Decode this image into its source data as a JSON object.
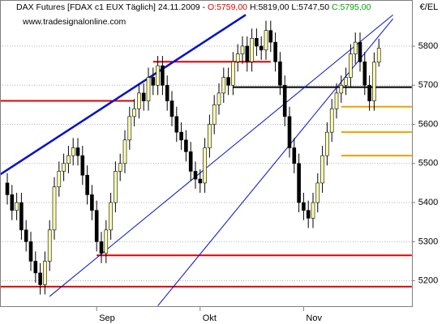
{
  "chart_data": {
    "type": "candlestick",
    "title": "DAX Futures [FDAX c1 EUX  Täglich] 24.11.2009 -",
    "quote_labels": {
      "open": "O:5759,00",
      "high": "H:5819,00",
      "low": "L:5747,50",
      "close": "C:5795,00"
    },
    "watermark": "www.tradesignalonline.com",
    "unit": "€/EL",
    "categories": [
      null,
      null,
      null,
      null,
      null,
      null,
      null,
      null,
      null,
      null,
      null,
      null,
      null,
      null,
      null,
      null,
      null,
      null,
      null,
      "Sep",
      null,
      null,
      null,
      null,
      null,
      null,
      null,
      null,
      null,
      null,
      null,
      null,
      null,
      null,
      null,
      null,
      null,
      null,
      null,
      null,
      null,
      "Okt",
      null,
      null,
      null,
      null,
      null,
      null,
      null,
      null,
      null,
      null,
      null,
      null,
      null,
      null,
      null,
      null,
      null,
      null,
      null,
      null,
      null,
      "Nov",
      null,
      null,
      null,
      null,
      null,
      null,
      null,
      null,
      null,
      null,
      null,
      null,
      null,
      null,
      null,
      null
    ],
    "open": [
      5450,
      5420,
      5380,
      5400,
      5330,
      5300,
      5250,
      5220,
      5190,
      5250,
      5330,
      5440,
      5480,
      5500,
      5520,
      5540,
      5520,
      5470,
      5420,
      5380,
      5300,
      5270,
      5330,
      5400,
      5480,
      5500,
      5560,
      5620,
      5640,
      5680,
      5660,
      5720,
      5700,
      5750,
      5700,
      5660,
      5620,
      5580,
      5560,
      5530,
      5480,
      5460,
      5450,
      5540,
      5600,
      5650,
      5680,
      5720,
      5700,
      5760,
      5780,
      5800,
      5760,
      5820,
      5800,
      5790,
      5840,
      5810,
      5760,
      5700,
      5620,
      5540,
      5500,
      5400,
      5380,
      5360,
      5400,
      5450,
      5520,
      5580,
      5640,
      5680,
      5700,
      5720,
      5780,
      5810,
      5760,
      5700,
      5660,
      5759
    ],
    "high": [
      5475,
      5445,
      5425,
      5425,
      5355,
      5325,
      5275,
      5245,
      5275,
      5355,
      5465,
      5505,
      5525,
      5545,
      5565,
      5565,
      5545,
      5495,
      5445,
      5405,
      5325,
      5355,
      5425,
      5505,
      5525,
      5585,
      5645,
      5665,
      5705,
      5705,
      5745,
      5745,
      5775,
      5775,
      5725,
      5685,
      5645,
      5605,
      5585,
      5555,
      5505,
      5485,
      5565,
      5625,
      5675,
      5705,
      5745,
      5745,
      5785,
      5805,
      5825,
      5825,
      5845,
      5845,
      5825,
      5865,
      5865,
      5835,
      5785,
      5725,
      5645,
      5565,
      5525,
      5425,
      5405,
      5425,
      5475,
      5545,
      5605,
      5665,
      5705,
      5725,
      5745,
      5805,
      5835,
      5835,
      5785,
      5725,
      5784,
      5819
    ],
    "low": [
      5395,
      5355,
      5355,
      5305,
      5275,
      5225,
      5195,
      5165,
      5165,
      5225,
      5305,
      5415,
      5455,
      5475,
      5495,
      5495,
      5445,
      5395,
      5355,
      5275,
      5245,
      5245,
      5305,
      5375,
      5455,
      5475,
      5535,
      5595,
      5615,
      5635,
      5635,
      5675,
      5675,
      5675,
      5635,
      5595,
      5555,
      5535,
      5505,
      5455,
      5435,
      5425,
      5425,
      5515,
      5575,
      5625,
      5655,
      5675,
      5675,
      5735,
      5755,
      5735,
      5735,
      5775,
      5765,
      5765,
      5785,
      5735,
      5675,
      5595,
      5515,
      5475,
      5375,
      5355,
      5335,
      5335,
      5375,
      5425,
      5495,
      5555,
      5615,
      5655,
      5675,
      5695,
      5755,
      5735,
      5675,
      5635,
      5635,
      5747.5
    ],
    "close": [
      5420,
      5380,
      5400,
      5330,
      5300,
      5250,
      5220,
      5190,
      5250,
      5330,
      5440,
      5480,
      5500,
      5520,
      5540,
      5520,
      5470,
      5420,
      5380,
      5300,
      5270,
      5330,
      5400,
      5480,
      5500,
      5560,
      5620,
      5640,
      5680,
      5660,
      5720,
      5700,
      5750,
      5700,
      5660,
      5620,
      5580,
      5560,
      5530,
      5480,
      5460,
      5450,
      5540,
      5600,
      5650,
      5680,
      5720,
      5700,
      5760,
      5780,
      5800,
      5760,
      5820,
      5800,
      5790,
      5840,
      5810,
      5760,
      5700,
      5620,
      5540,
      5500,
      5400,
      5380,
      5360,
      5400,
      5450,
      5520,
      5580,
      5640,
      5680,
      5700,
      5720,
      5780,
      5810,
      5760,
      5700,
      5660,
      5759,
      5795
    ],
    "up_color": "#ffffb0",
    "down_color": "#000000",
    "ylim": [
      5135,
      5918
    ],
    "yticks": [
      5200,
      5300,
      5400,
      5500,
      5600,
      5700,
      5800
    ],
    "grid": true,
    "levels": [
      {
        "value": 5660,
        "from": -2,
        "to": 27,
        "color": "#e00000"
      },
      {
        "value": 5760,
        "from": 31,
        "to": 56,
        "color": "#e00000"
      },
      {
        "value": 5265,
        "from": 19,
        "to": 86,
        "color": "#e00000"
      },
      {
        "value": 5185,
        "from": -2,
        "to": 86,
        "color": "#e00000"
      },
      {
        "value": 5695,
        "from": 48,
        "to": 86,
        "color": "#000000"
      },
      {
        "value": 5645,
        "from": 71,
        "to": 86,
        "color": "#f0a000"
      },
      {
        "value": 5580,
        "from": 71,
        "to": 86,
        "color": "#f0a000"
      },
      {
        "value": 5520,
        "from": 71,
        "to": 86,
        "color": "#f0a000"
      }
    ],
    "trendlines": [
      {
        "x": [
          -1.5,
          50.7
        ],
        "y": [
          5472,
          5880
        ],
        "color": "#0010d0",
        "width": 2.5
      },
      {
        "x": [
          9,
          82
        ],
        "y": [
          5160,
          5880
        ],
        "color": "#0010d0",
        "width": 1
      },
      {
        "x": [
          32,
          82
        ],
        "y": [
          5136,
          5870
        ],
        "color": "#0010d0",
        "width": 1
      }
    ]
  }
}
